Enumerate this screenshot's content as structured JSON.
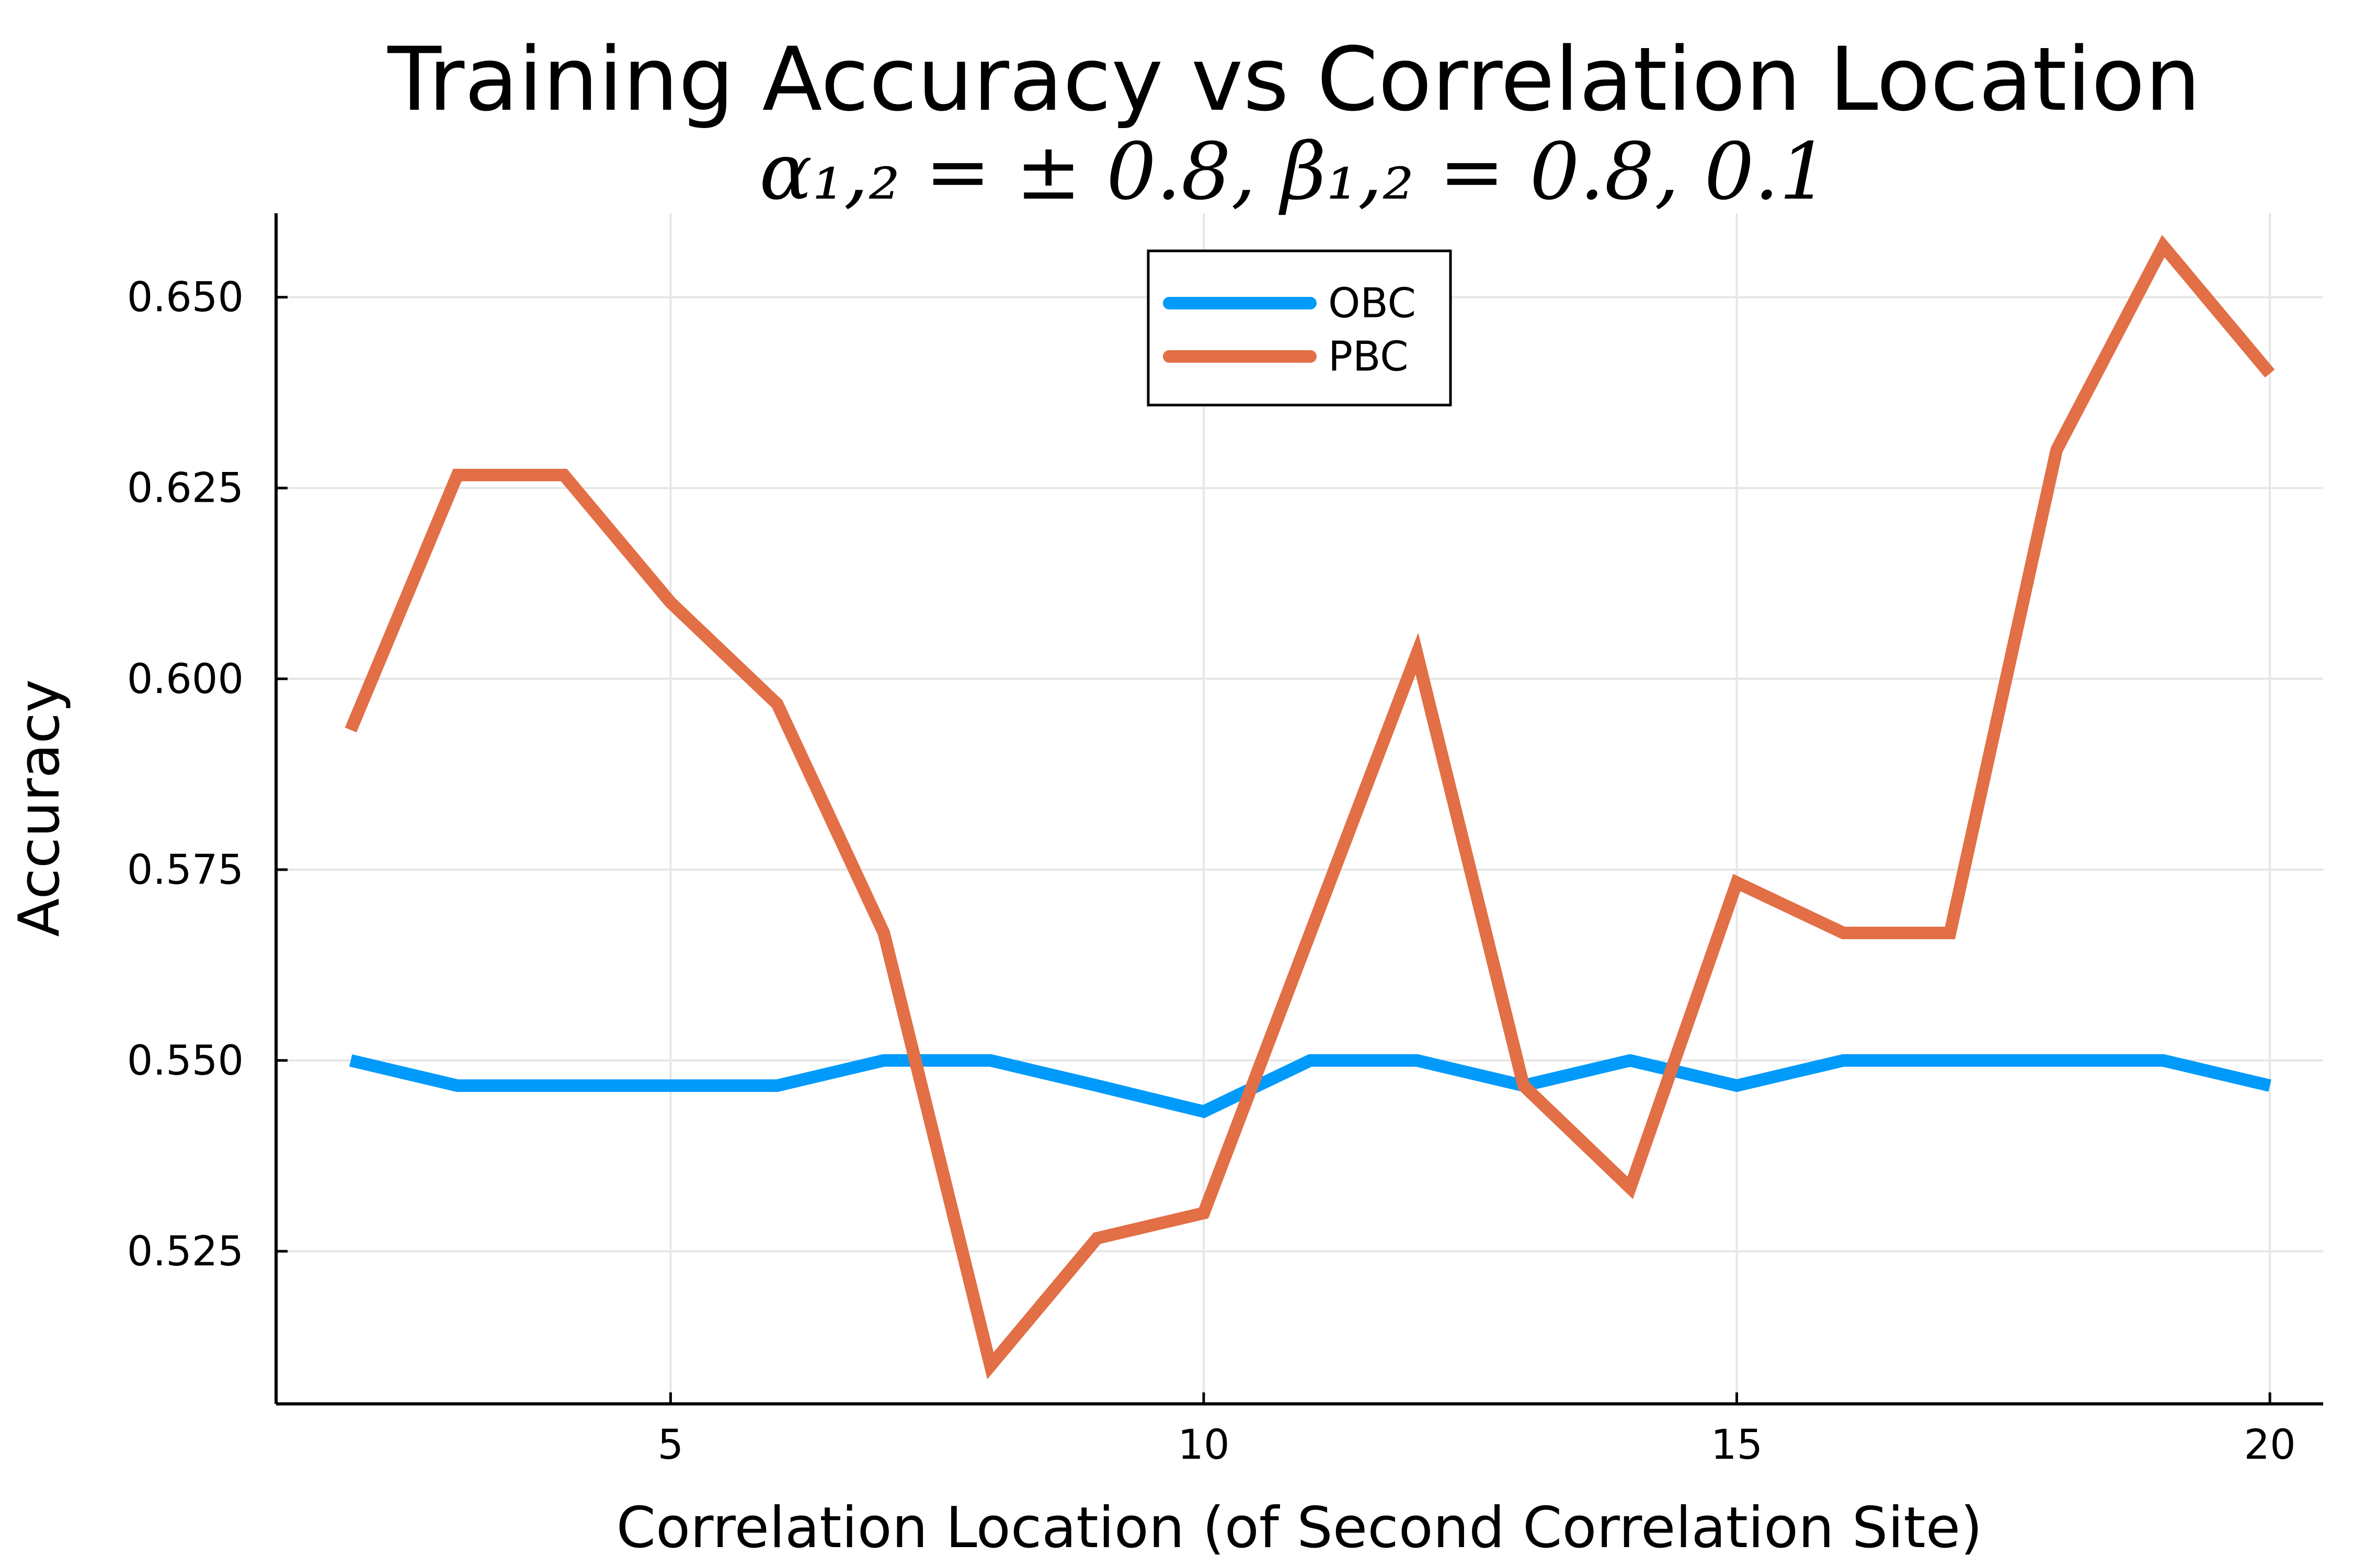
{
  "chart_data": {
    "type": "line",
    "title": "Training Accuracy vs Correlation Location",
    "subtitle": "α₁,₂ = ± 0.8, β₁,₂ = 0.8, 0.1",
    "xlabel": "Correlation Location (of Second Correlation Site)",
    "ylabel": "Accuracy",
    "xlim": [
      1.3,
      20.5
    ],
    "ylim": [
      0.505,
      0.661
    ],
    "xticks": [
      5,
      10,
      15,
      20
    ],
    "xtick_labels": [
      "5",
      "10",
      "15",
      "20"
    ],
    "yticks": [
      0.525,
      0.55,
      0.575,
      0.6,
      0.625,
      0.65
    ],
    "ytick_labels": [
      "0.525",
      "0.550",
      "0.575",
      "0.600",
      "0.625",
      "0.650"
    ],
    "grid": true,
    "legend_position": "top-center",
    "x": [
      2,
      3,
      4,
      5,
      6,
      7,
      8,
      9,
      10,
      11,
      12,
      13,
      14,
      15,
      16,
      17,
      18,
      19,
      20
    ],
    "series": [
      {
        "name": "OBC",
        "color": "#009AFA",
        "values": [
          0.55,
          0.5467,
          0.5467,
          0.5467,
          0.5467,
          0.55,
          0.55,
          0.5467,
          0.5433,
          0.55,
          0.55,
          0.5467,
          0.55,
          0.5467,
          0.55,
          0.55,
          0.55,
          0.55,
          0.5467
        ]
      },
      {
        "name": "PBC",
        "color": "#E26F46",
        "values": [
          0.5933,
          0.6267,
          0.6267,
          0.61,
          0.5967,
          0.5667,
          0.51,
          0.5267,
          0.53,
          0.5667,
          0.6033,
          0.5467,
          0.5333,
          0.5733,
          0.5667,
          0.5667,
          0.63,
          0.6567,
          0.64
        ]
      }
    ]
  }
}
